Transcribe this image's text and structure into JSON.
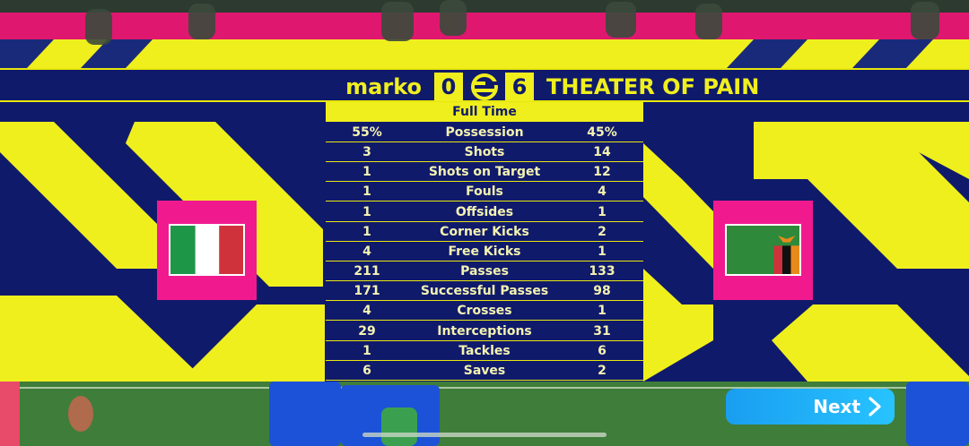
{
  "colors": {
    "navy": "#101a6b",
    "yellow": "#f0ef1e",
    "magenta": "#f01a8e",
    "button": "#1fa8f5"
  },
  "scoreboard": {
    "home_team": "marko",
    "home_score": "0",
    "away_score": "6",
    "away_team": "THEATER OF PAIN",
    "logo_icon": "efootball-logo-icon"
  },
  "match_status": "Full Time",
  "stats": [
    {
      "label": "Possession",
      "home": "55%",
      "away": "45%"
    },
    {
      "label": "Shots",
      "home": "3",
      "away": "14"
    },
    {
      "label": "Shots on Target",
      "home": "1",
      "away": "12"
    },
    {
      "label": "Fouls",
      "home": "1",
      "away": "4"
    },
    {
      "label": "Offsides",
      "home": "1",
      "away": "1"
    },
    {
      "label": "Corner Kicks",
      "home": "1",
      "away": "2"
    },
    {
      "label": "Free Kicks",
      "home": "4",
      "away": "1"
    },
    {
      "label": "Passes",
      "home": "211",
      "away": "133"
    },
    {
      "label": "Successful Passes",
      "home": "171",
      "away": "98"
    },
    {
      "label": "Crosses",
      "home": "4",
      "away": "1"
    },
    {
      "label": "Interceptions",
      "home": "29",
      "away": "31"
    },
    {
      "label": "Tackles",
      "home": "1",
      "away": "6"
    },
    {
      "label": "Saves",
      "home": "6",
      "away": "2"
    }
  ],
  "flags": {
    "home_icon": "italy-flag-icon",
    "away_icon": "zambia-flag-icon"
  },
  "next_button": {
    "label": "Next",
    "icon": "chevron-right-icon"
  }
}
